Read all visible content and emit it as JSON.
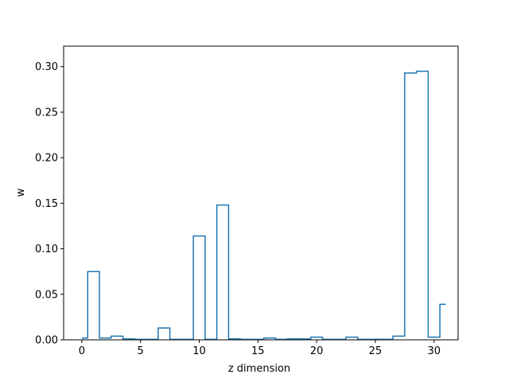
{
  "chart_data": {
    "type": "step",
    "title": "",
    "xlabel": "z dimension",
    "ylabel": "w",
    "xlim": [
      -1.55,
      32.05
    ],
    "ylim": [
      0,
      0.3225
    ],
    "xticks": [
      0,
      5,
      10,
      15,
      20,
      25,
      30
    ],
    "xtick_labels": [
      "0",
      "5",
      "10",
      "15",
      "20",
      "25",
      "30"
    ],
    "yticks": [
      0.0,
      0.05,
      0.1,
      0.15,
      0.2,
      0.25,
      0.3
    ],
    "ytick_labels": [
      "0.00",
      "0.05",
      "0.10",
      "0.15",
      "0.20",
      "0.25",
      "0.30"
    ],
    "step_where": "mid",
    "line_color": "#1f77b4",
    "grid": false,
    "x": [
      0,
      1,
      2,
      3,
      4,
      5,
      6,
      7,
      8,
      9,
      10,
      11,
      12,
      13,
      14,
      15,
      16,
      17,
      18,
      19,
      20,
      21,
      22,
      23,
      24,
      25,
      26,
      27,
      28,
      29,
      30,
      31
    ],
    "y": [
      0.002,
      0.075,
      0.002,
      0.004,
      0.001,
      0.0005,
      0.0005,
      0.013,
      0.0005,
      0.0005,
      0.114,
      0.0005,
      0.148,
      0.001,
      0.0005,
      0.0005,
      0.002,
      0.0005,
      0.001,
      0.001,
      0.003,
      0.0005,
      0.0005,
      0.003,
      0.0005,
      0.0005,
      0.0005,
      0.004,
      0.293,
      0.295,
      0.003,
      0.039
    ]
  }
}
